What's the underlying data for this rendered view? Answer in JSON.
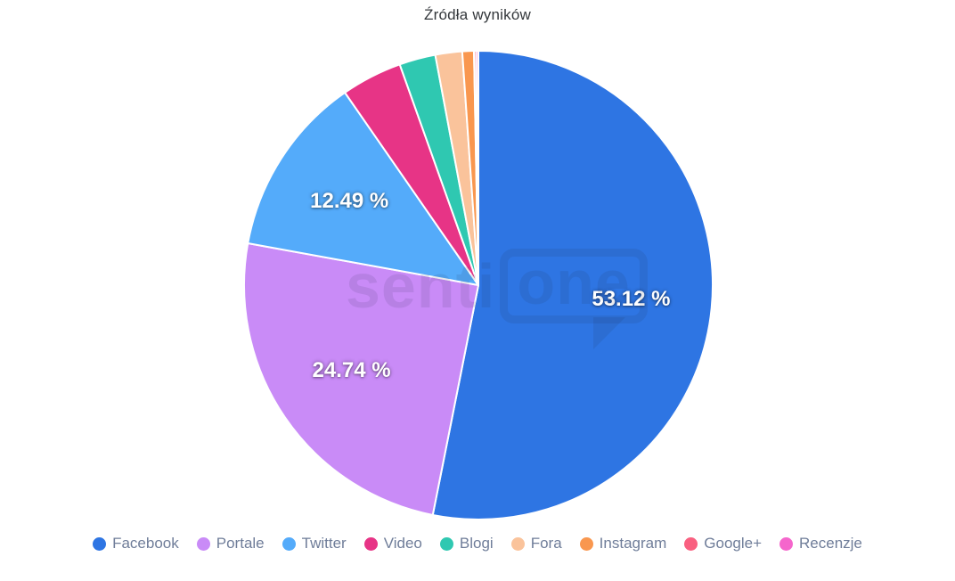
{
  "page": {
    "background": "#ffffff"
  },
  "chart_data": {
    "type": "pie",
    "title": "Źródła wyników",
    "legend_position": "bottom",
    "start_angle_deg": 0,
    "direction": "clockwise",
    "data_label_suffix": " %",
    "data_label_min_percent": 5,
    "labels_shown": [
      "53.12 %",
      "24.74 %",
      "12.49 %"
    ],
    "series": [
      {
        "name": "Facebook",
        "value": 53.12,
        "color": "#2E75E3"
      },
      {
        "name": "Portale",
        "value": 24.74,
        "color": "#C98BF7"
      },
      {
        "name": "Twitter",
        "value": 12.49,
        "color": "#54ABFA"
      },
      {
        "name": "Video",
        "value": 4.2,
        "color": "#E73486"
      },
      {
        "name": "Blogi",
        "value": 2.5,
        "color": "#2FC8B1"
      },
      {
        "name": "Fora",
        "value": 1.85,
        "color": "#FAC39B"
      },
      {
        "name": "Instagram",
        "value": 0.8,
        "color": "#F9974F"
      },
      {
        "name": "Google+",
        "value": 0.15,
        "color": "#F96080"
      },
      {
        "name": "Recenzje",
        "value": 0.15,
        "color": "#F566CC"
      }
    ]
  },
  "watermark": {
    "part1": "senti",
    "part2": "one"
  }
}
